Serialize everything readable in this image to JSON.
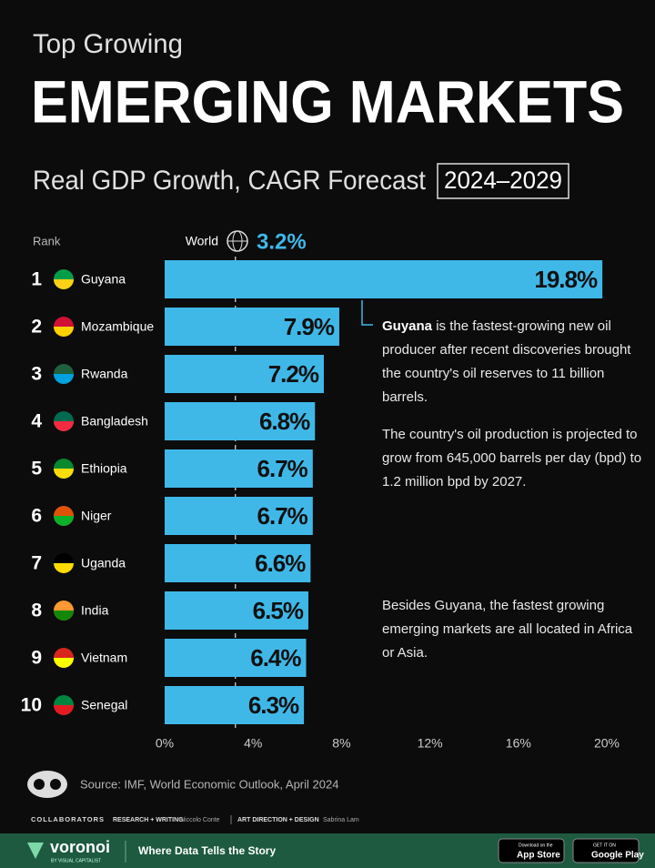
{
  "header": {
    "kicker": "Top Growing",
    "title": "EMERGING MARKETS",
    "subtitle": "Real GDP Growth, CAGR Forecast",
    "period": "2024–2029"
  },
  "chart_data": {
    "type": "bar",
    "orientation": "horizontal",
    "rank_label": "Rank",
    "ranks": [
      1,
      2,
      3,
      4,
      5,
      6,
      7,
      8,
      9,
      10
    ],
    "categories": [
      "Guyana",
      "Mozambique",
      "Rwanda",
      "Bangladesh",
      "Ethiopia",
      "Niger",
      "Uganda",
      "India",
      "Vietnam",
      "Senegal"
    ],
    "values": [
      19.8,
      7.9,
      7.2,
      6.8,
      6.7,
      6.7,
      6.6,
      6.5,
      6.4,
      6.3
    ],
    "value_labels": [
      "19.8%",
      "7.9%",
      "7.2%",
      "6.8%",
      "6.7%",
      "6.7%",
      "6.6%",
      "6.5%",
      "6.4%",
      "6.3%"
    ],
    "color": "#3fb8e8",
    "xlim": [
      0,
      20
    ],
    "xticks": [
      {
        "value": 0,
        "label": "0%"
      },
      {
        "value": 4,
        "label": "4%"
      },
      {
        "value": 8,
        "label": "8%"
      },
      {
        "value": 12,
        "label": "12%"
      },
      {
        "value": 16,
        "label": "16%"
      },
      {
        "value": 20,
        "label": "20%"
      }
    ],
    "reference": {
      "label": "World",
      "value": 3.2,
      "value_label": "3.2%"
    },
    "annotations": [
      {
        "bold": "Guyana",
        "text": " is the fastest-growing new oil producer after recent discoveries brought the country's oil reserves to 11 billion barrels."
      },
      {
        "text": "The country's oil production is projected to grow from 645,000 barrels per day (bpd) to 1.2 million bpd by 2027."
      },
      {
        "text": "Besides Guyana, the fastest growing emerging markets are all located in Africa or Asia."
      }
    ]
  },
  "footer": {
    "source": "Source: IMF, World Economic Outlook, April 2024",
    "collaborators": "COLLABORATORS",
    "research_label": "RESEARCH + WRITING",
    "research_name": "Niccolo Conte",
    "design_label": "ART DIRECTION + DESIGN",
    "design_name": "Sabrina Lam",
    "brand": "voronoi",
    "brand_by": "BY VISUAL CAPITALIST",
    "tagline": "Where Data Tells the Story",
    "appstore_small": "Download on the",
    "appstore": "App Store",
    "googleplay_small": "GET IT ON",
    "googleplay": "Google Play"
  }
}
